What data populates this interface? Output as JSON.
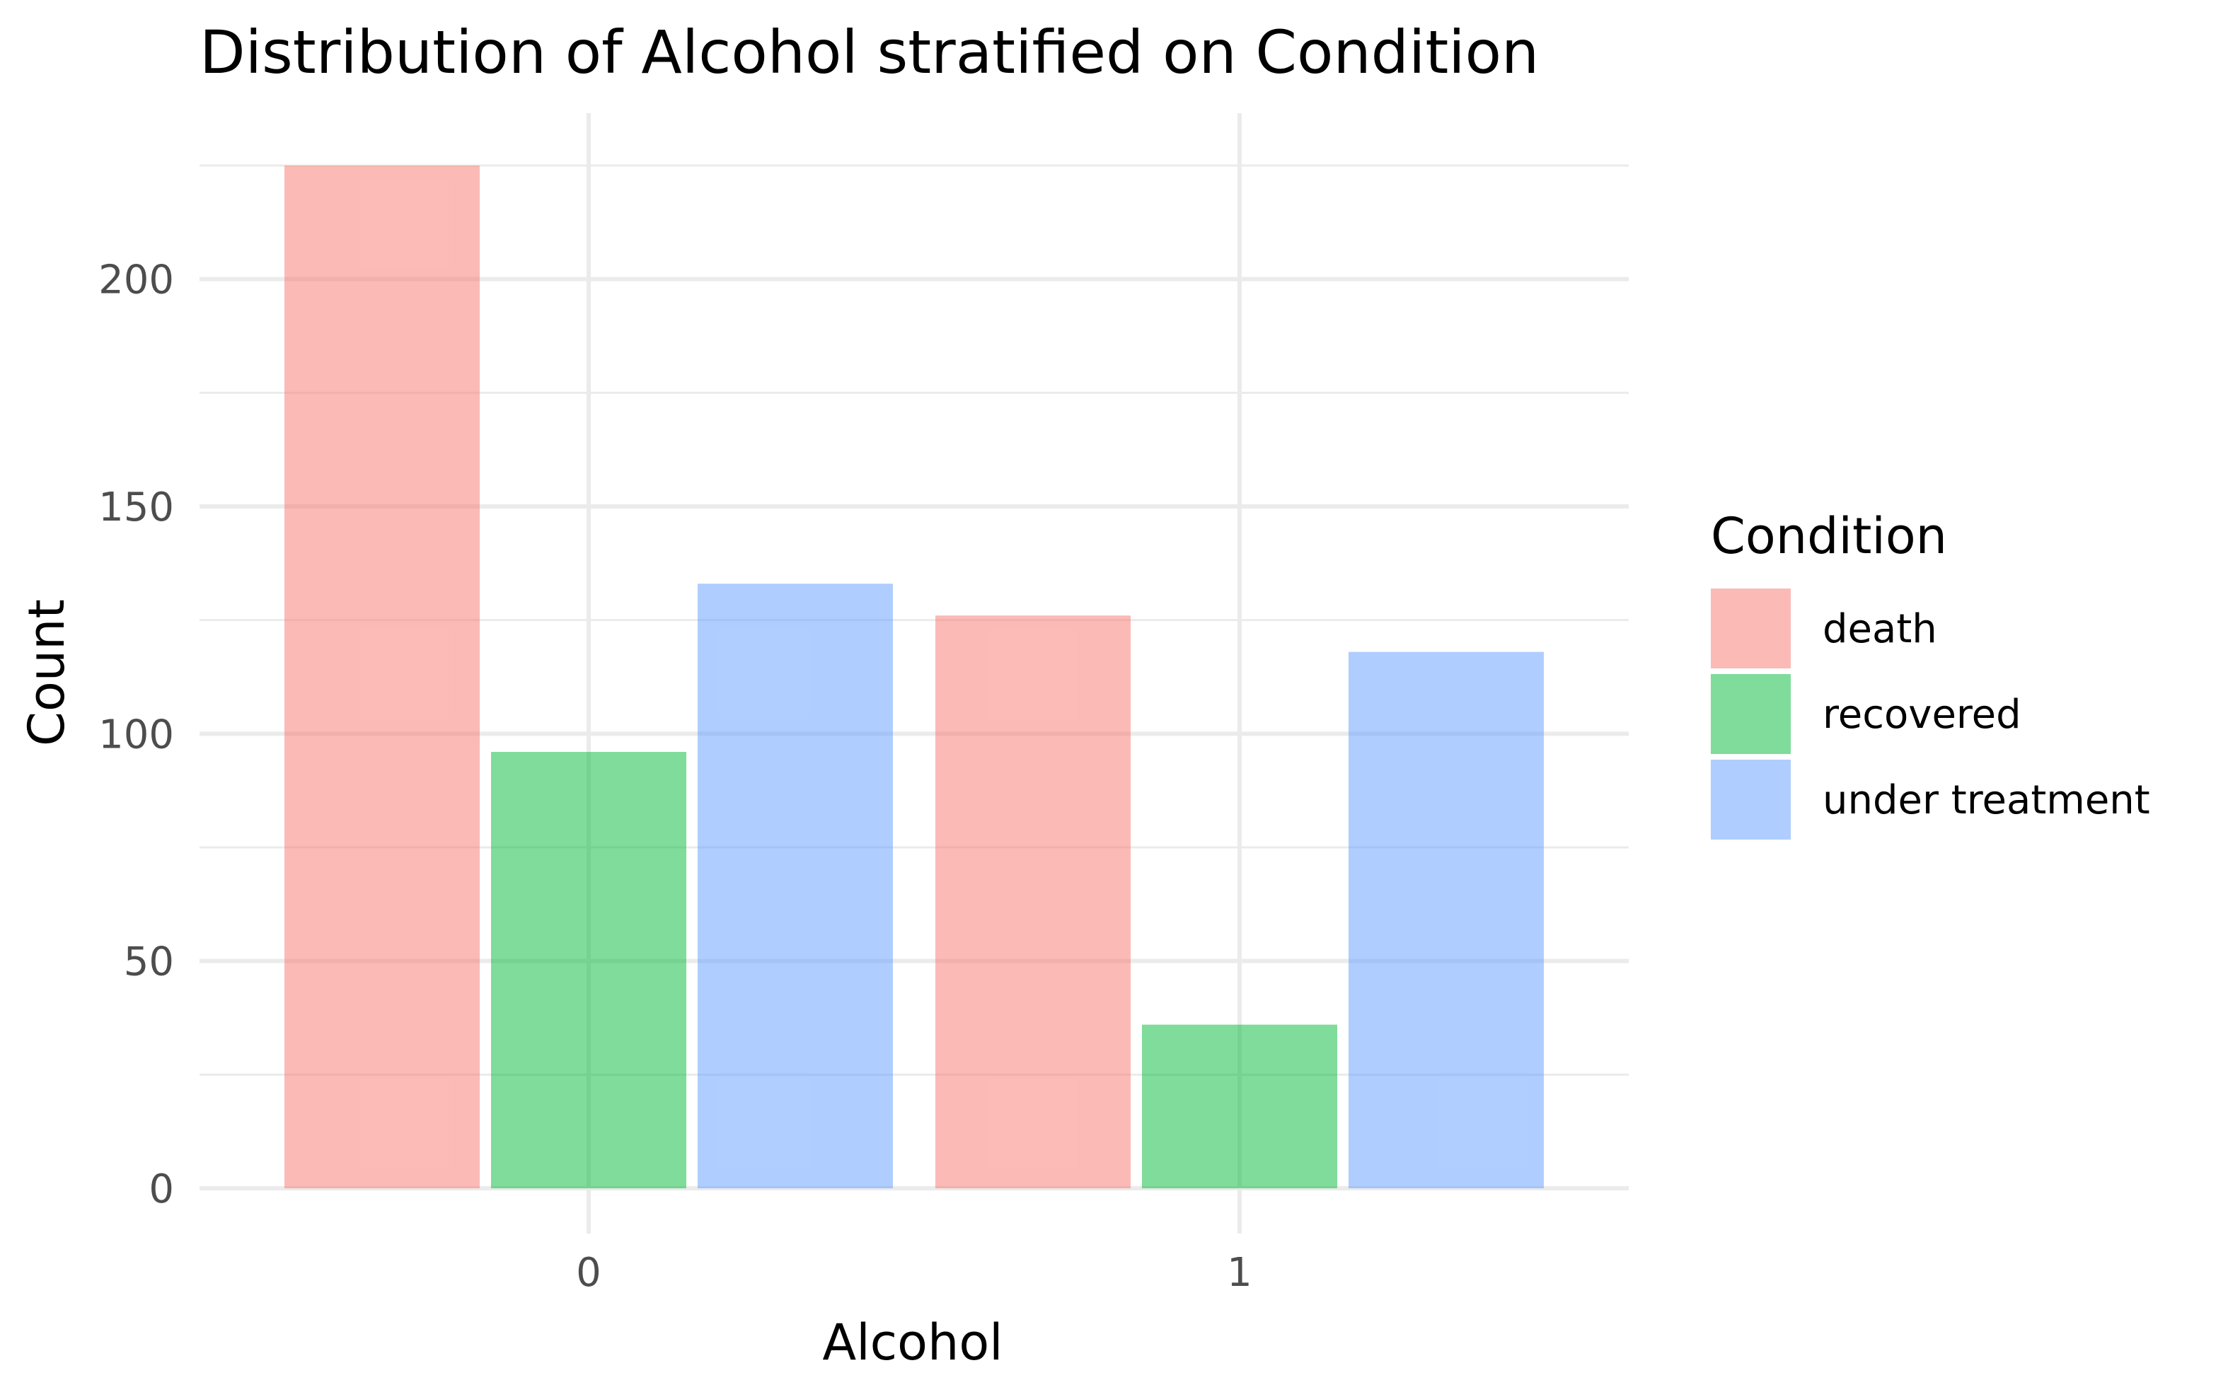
{
  "chart_data": {
    "type": "bar",
    "title": "Distribution of Alcohol stratified on Condition",
    "xlabel": "Alcohol",
    "ylabel": "Count",
    "categories": [
      "0",
      "1"
    ],
    "series": [
      {
        "name": "death",
        "values": [
          225,
          126
        ],
        "color": "#F8766D"
      },
      {
        "name": "recovered",
        "values": [
          96,
          36
        ],
        "color": "#00BA38"
      },
      {
        "name": "under treatment",
        "values": [
          133,
          118
        ],
        "color": "#619CFF"
      }
    ],
    "yticks": [
      0,
      50,
      100,
      150,
      200
    ],
    "ylim": [
      0,
      225
    ],
    "grid": true,
    "legend": {
      "title": "Condition",
      "position": "right"
    }
  }
}
